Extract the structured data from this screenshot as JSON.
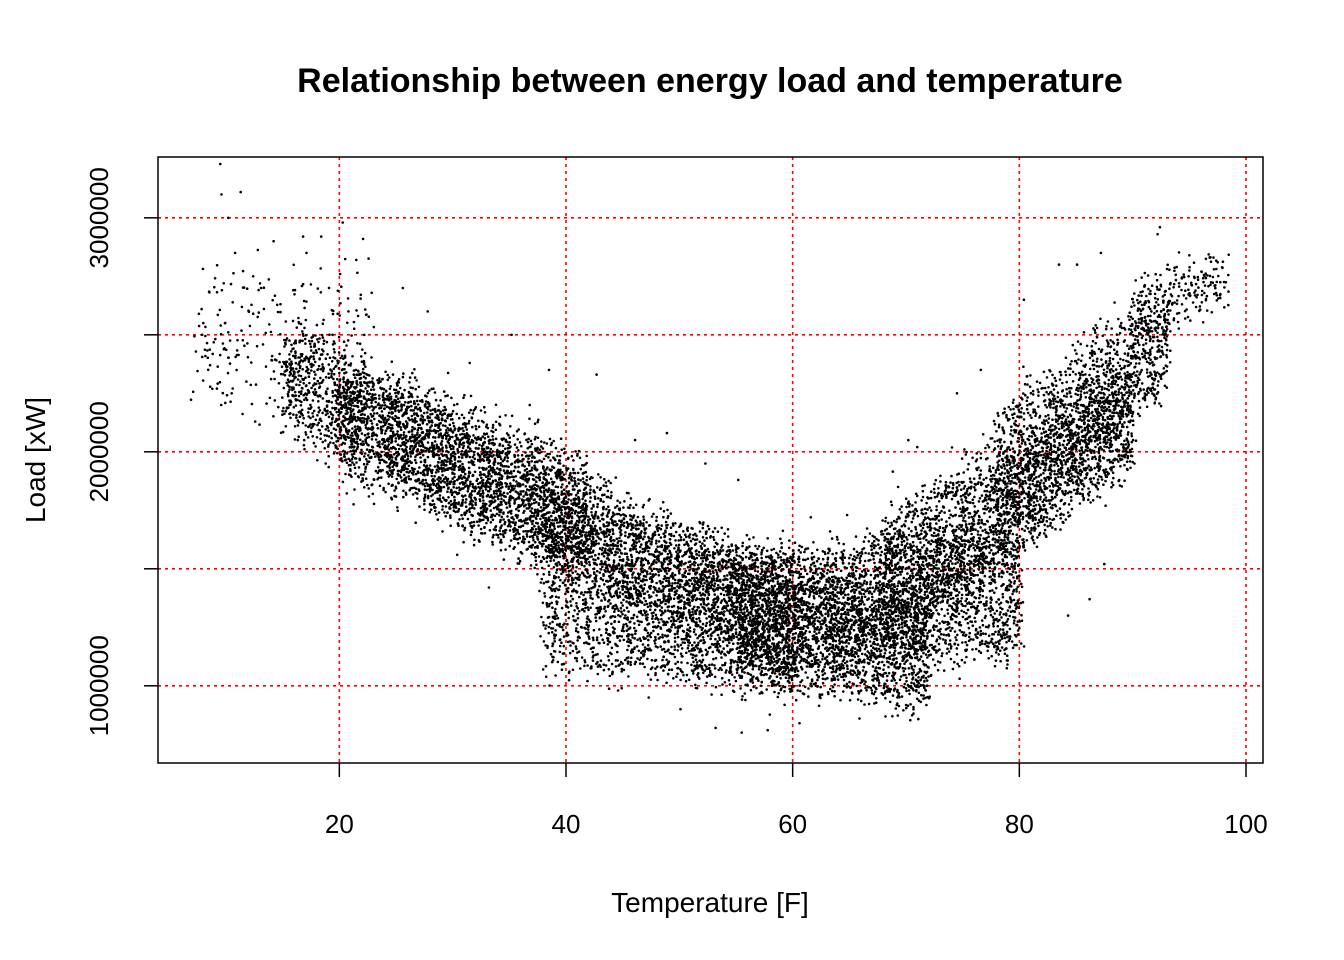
{
  "chart_data": {
    "type": "scatter",
    "title": "Relationship between energy load and temperature",
    "xlabel": "Temperature [F]",
    "ylabel": "Load [xW]",
    "xlim": [
      4,
      101.5
    ],
    "ylim": [
      670000,
      3260000
    ],
    "x_ticks": [
      20,
      40,
      60,
      80,
      100
    ],
    "x_tick_labels": [
      "20",
      "40",
      "60",
      "80",
      "100"
    ],
    "y_ticks": [
      1000000,
      1500000,
      2000000,
      2500000,
      3000000
    ],
    "y_tick_labels": [
      "1000000",
      "",
      "2000000",
      "",
      "3000000"
    ],
    "grid": true,
    "grid_color": "#ff0000",
    "point_color": "#000000",
    "series": [
      {
        "points": [
          [
            9.5,
            3230000
          ],
          [
            9.6,
            3100000
          ],
          [
            11.3,
            3110000
          ],
          [
            10.2,
            3000000
          ],
          [
            10.8,
            2850000
          ],
          [
            9.8,
            2720000
          ],
          [
            8.0,
            2550000
          ],
          [
            7.9,
            2500000
          ],
          [
            8.6,
            2370000
          ],
          [
            9.2,
            2270000
          ],
          [
            10.5,
            2250000
          ],
          [
            11.8,
            2300000
          ],
          [
            12.4,
            2750000
          ],
          [
            13.1,
            2700000
          ],
          [
            14.2,
            2900000
          ],
          [
            16.8,
            2920000
          ],
          [
            18.4,
            2920000
          ],
          [
            20.3,
            2980000
          ],
          [
            21.5,
            2820000
          ],
          [
            22.1,
            2910000
          ],
          [
            20.8,
            2600000
          ],
          [
            19.4,
            2500000
          ],
          [
            17.2,
            2350000
          ],
          [
            15.6,
            2200000
          ],
          [
            16.9,
            2050000
          ],
          [
            18.8,
            1950000
          ],
          [
            20.5,
            2000000
          ],
          [
            23.4,
            2200000
          ],
          [
            25.6,
            2700000
          ],
          [
            27.8,
            2600000
          ],
          [
            35.2,
            2500000
          ],
          [
            38.5,
            2350000
          ],
          [
            42.7,
            2330000
          ],
          [
            46.1,
            2050000
          ],
          [
            48.9,
            2080000
          ],
          [
            52.3,
            1950000
          ],
          [
            55.2,
            1880000
          ],
          [
            61.6,
            1720000
          ],
          [
            64.8,
            1730000
          ],
          [
            69.3,
            1850000
          ],
          [
            70.2,
            2050000
          ],
          [
            71.0,
            2020000
          ],
          [
            74.5,
            2250000
          ],
          [
            76.6,
            2350000
          ],
          [
            80.4,
            2650000
          ],
          [
            83.5,
            2800000
          ],
          [
            85.1,
            2800000
          ],
          [
            87.2,
            2850000
          ],
          [
            92.4,
            2960000
          ],
          [
            92.2,
            2930000
          ],
          [
            95.0,
            2840000
          ],
          [
            96.8,
            2830000
          ],
          [
            97.5,
            2810000
          ],
          [
            94.1,
            2720000
          ],
          [
            89.9,
            2620000
          ],
          [
            88.0,
            2400000
          ],
          [
            87.5,
            1520000
          ],
          [
            86.2,
            1370000
          ],
          [
            84.3,
            1300000
          ],
          [
            79.8,
            1260000
          ],
          [
            78.2,
            1230000
          ],
          [
            68.8,
            870000
          ],
          [
            65.9,
            860000
          ],
          [
            60.6,
            840000
          ],
          [
            57.8,
            810000
          ],
          [
            55.5,
            800000
          ],
          [
            53.2,
            820000
          ],
          [
            50.1,
            900000
          ],
          [
            47.3,
            950000
          ],
          [
            44.6,
            980000
          ],
          [
            41.9,
            1020000
          ],
          [
            40.3,
            1060000
          ],
          [
            33.2,
            1420000
          ],
          [
            30.4,
            1560000
          ],
          [
            29.1,
            1660000
          ],
          [
            27.5,
            1800000
          ],
          [
            25.7,
            2000000
          ],
          [
            22.4,
            2140000
          ],
          [
            36.8,
            2200000
          ],
          [
            31.5,
            2380000
          ]
        ]
      }
    ],
    "bands": [
      {
        "x0": 7,
        "x1": 23,
        "y_low": [
          2250000,
          2050000
        ],
        "y_high": [
          2700000,
          2780000
        ],
        "weight": 0.3,
        "spread": 180000
      },
      {
        "x0": 15,
        "x1": 42,
        "y_low": [
          2150000,
          1480000
        ],
        "y_high": [
          2500000,
          1950000
        ],
        "weight": 2.2,
        "spread": 120000
      },
      {
        "x0": 20,
        "x1": 60,
        "y_low": [
          1950000,
          1050000
        ],
        "y_high": [
          2350000,
          1450000
        ],
        "weight": 3.6,
        "spread": 110000
      },
      {
        "x0": 38,
        "x1": 72,
        "y_low": [
          1100000,
          930000
        ],
        "y_high": [
          1800000,
          1350000
        ],
        "weight": 4.0,
        "spread": 100000
      },
      {
        "x0": 55,
        "x1": 80,
        "y_low": [
          1050000,
          1150000
        ],
        "y_high": [
          1550000,
          1650000
        ],
        "weight": 3.0,
        "spread": 90000
      },
      {
        "x0": 68,
        "x1": 90,
        "y_low": [
          1200000,
          1950000
        ],
        "y_high": [
          1700000,
          2350000
        ],
        "weight": 2.6,
        "spread": 110000
      },
      {
        "x0": 78,
        "x1": 93,
        "y_low": [
          1550000,
          2300000
        ],
        "y_high": [
          2150000,
          2700000
        ],
        "weight": 1.5,
        "spread": 110000
      },
      {
        "x0": 90,
        "x1": 98,
        "y_low": [
          2450000,
          2650000
        ],
        "y_high": [
          2700000,
          2850000
        ],
        "weight": 0.25,
        "spread": 80000
      }
    ]
  }
}
